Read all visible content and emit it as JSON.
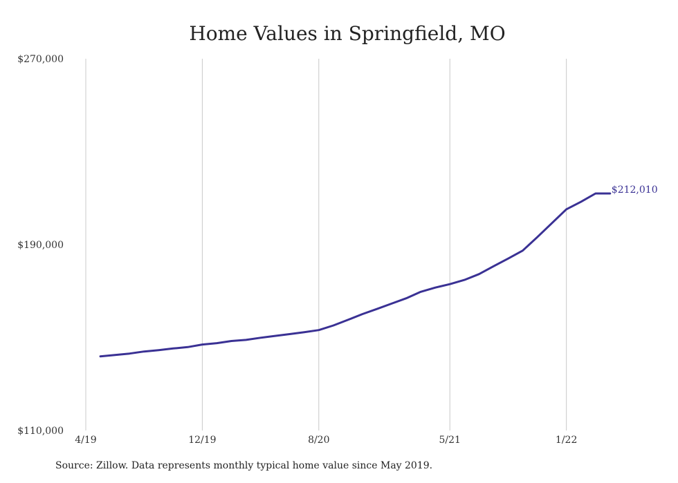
{
  "chart_data": {
    "type": "line",
    "title": "Home Values in Springfield, MO",
    "xlabel": "",
    "ylabel": "",
    "ylim": [
      110000,
      270000
    ],
    "xlim_months": [
      "2019-04",
      "2022-06"
    ],
    "y_ticks": [
      {
        "value": 110000,
        "label": "$110,000"
      },
      {
        "value": 190000,
        "label": "$190,000"
      },
      {
        "value": 270000,
        "label": "$270,000"
      }
    ],
    "x_ticks": [
      "4/19",
      "12/19",
      "8/20",
      "5/21",
      "1/22"
    ],
    "grid": "vertical",
    "series": [
      {
        "color": "#3a3194",
        "x": [
          "2019-05",
          "2019-06",
          "2019-07",
          "2019-08",
          "2019-09",
          "2019-10",
          "2019-11",
          "2019-12",
          "2020-01",
          "2020-02",
          "2020-03",
          "2020-04",
          "2020-05",
          "2020-06",
          "2020-07",
          "2020-08",
          "2020-09",
          "2020-10",
          "2020-11",
          "2020-12",
          "2021-01",
          "2021-02",
          "2021-03",
          "2021-04",
          "2021-05",
          "2021-06",
          "2021-07",
          "2021-08",
          "2021-09",
          "2021-10",
          "2021-11",
          "2021-12",
          "2022-01",
          "2022-02",
          "2022-03",
          "2022-04"
        ],
        "values": [
          141900,
          142500,
          143100,
          144000,
          144600,
          145300,
          145900,
          147000,
          147600,
          148500,
          149000,
          149900,
          150700,
          151500,
          152300,
          153200,
          155200,
          157600,
          160100,
          162300,
          164600,
          166900,
          169700,
          171500,
          173000,
          174800,
          177300,
          180700,
          184000,
          187400,
          193200,
          199200,
          205200,
          208400,
          212000,
          212010
        ]
      }
    ],
    "annotations": [
      {
        "text": "$212,010",
        "x": "2022-04",
        "y": 212010,
        "color": "#3a3194"
      }
    ]
  },
  "footer": {
    "source": "Source: Zillow. Data represents monthly typical home value since May 2019."
  }
}
